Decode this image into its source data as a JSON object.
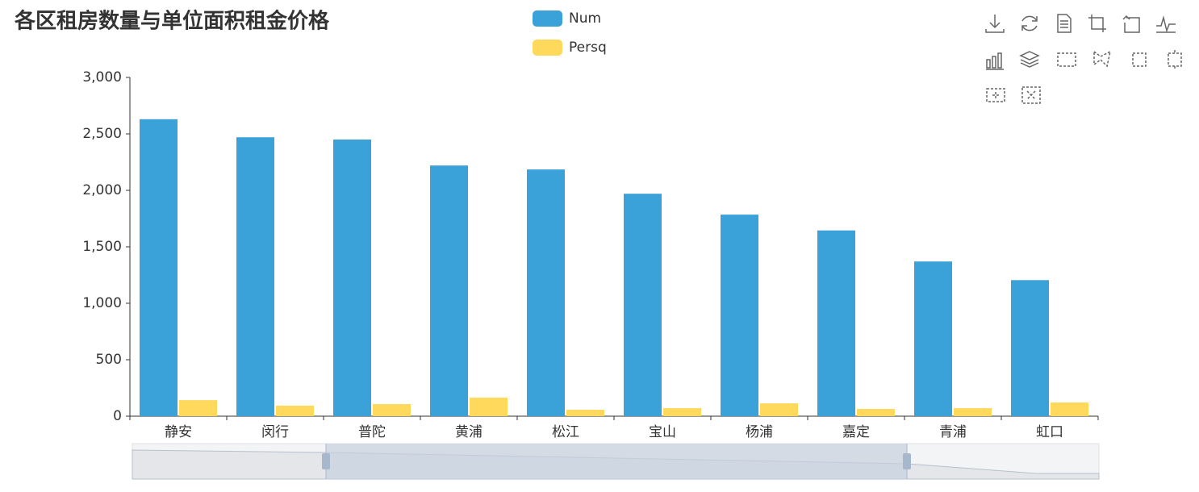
{
  "chart_data": {
    "type": "bar",
    "title": "各区租房数量与单位面积租金价格",
    "categories": [
      "静安",
      "闵行",
      "普陀",
      "黄浦",
      "松江",
      "宝山",
      "杨浦",
      "嘉定",
      "青浦",
      "虹口"
    ],
    "series": [
      {
        "name": "Num",
        "color": "#3aa1d9",
        "values": [
          2630,
          2470,
          2450,
          2220,
          2185,
          1970,
          1785,
          1645,
          1370,
          1205
        ]
      },
      {
        "name": "Persq",
        "color": "#ffd95c",
        "values": [
          142,
          93,
          107,
          164,
          57,
          71,
          114,
          64,
          71,
          121
        ]
      }
    ],
    "ylim": [
      0,
      3000
    ],
    "yticks": [
      0,
      500,
      {
        "value": 1000,
        "label": "1,000"
      },
      {
        "value": 1500,
        "label": "1,500"
      },
      {
        "value": 2000,
        "label": "2,000"
      },
      {
        "value": 2500,
        "label": "2,500"
      },
      {
        "value": 3000,
        "label": "3,000"
      }
    ],
    "grid": false
  }
}
